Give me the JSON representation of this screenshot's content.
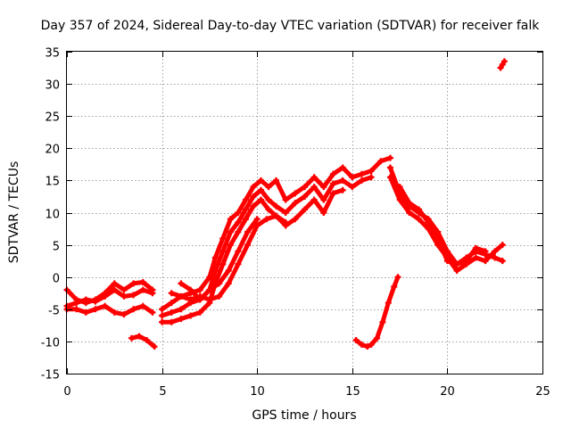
{
  "chart_data": {
    "type": "scatter",
    "title": "Day 357 of 2024, Sidereal Day-to-day VTEC variation (SDTVAR) for receiver falk",
    "xlabel": "GPS time / hours",
    "ylabel": "SDTVAR / TECUs",
    "xlim": [
      0,
      25
    ],
    "ylim": [
      -15,
      35
    ],
    "xticks": [
      0,
      5,
      10,
      15,
      20,
      25
    ],
    "yticks": [
      -15,
      -10,
      -5,
      0,
      5,
      10,
      15,
      20,
      25,
      30,
      35
    ],
    "grid": true,
    "marker_color": "#ff0000",
    "series": [
      {
        "name": "trace-1",
        "x": [
          0.0,
          0.5,
          1.0,
          1.5,
          2.0,
          2.5,
          3.0,
          3.5,
          4.0,
          4.5
        ],
        "y": [
          -4.5,
          -4.0,
          -3.5,
          -3.8,
          -3.0,
          -2.0,
          -3.0,
          -2.8,
          -2.0,
          -2.5
        ]
      },
      {
        "name": "trace-2",
        "x": [
          0.0,
          0.5,
          1.0,
          1.5,
          2.0,
          2.5,
          3.0,
          3.5,
          4.0,
          4.5
        ],
        "y": [
          -2.0,
          -3.5,
          -4.0,
          -3.5,
          -2.5,
          -1.0,
          -2.0,
          -1.0,
          -0.8,
          -2.0
        ]
      },
      {
        "name": "trace-3",
        "x": [
          0.0,
          0.5,
          1.0,
          1.5,
          2.0,
          2.5,
          3.0,
          3.5,
          4.0,
          4.5
        ],
        "y": [
          -5.0,
          -5.0,
          -5.5,
          -5.0,
          -4.5,
          -5.5,
          -5.8,
          -5.0,
          -4.5,
          -5.5
        ]
      },
      {
        "name": "trace-4",
        "x": [
          3.4,
          3.8,
          4.2,
          4.6
        ],
        "y": [
          -9.5,
          -9.2,
          -9.8,
          -10.8
        ]
      },
      {
        "name": "trace-5",
        "x": [
          5.0,
          5.5,
          6.0,
          6.5,
          7.0,
          7.5,
          7.8,
          8.2,
          8.6,
          9.0,
          9.4,
          9.8,
          10.2,
          10.6,
          11.0,
          11.5,
          12.0,
          12.5,
          13.0,
          13.5,
          14.0,
          14.5,
          15.0,
          15.5,
          16.0,
          16.5,
          17.0
        ],
        "y": [
          -5.0,
          -4.0,
          -3.0,
          -2.5,
          -2.0,
          0.0,
          3.0,
          6.0,
          9.0,
          10.0,
          12.0,
          14.0,
          15.0,
          14.0,
          15.0,
          12.0,
          13.0,
          14.0,
          15.5,
          14.0,
          16.0,
          17.0,
          15.5,
          16.0,
          16.5,
          18.0,
          18.5
        ]
      },
      {
        "name": "trace-6",
        "x": [
          5.0,
          5.5,
          6.0,
          6.5,
          7.0,
          7.5,
          7.8,
          8.2,
          8.6,
          9.0,
          9.4,
          9.8,
          10.2,
          10.6,
          11.0,
          11.5,
          12.0,
          12.5,
          13.0,
          13.5,
          14.0,
          14.5,
          15.0,
          15.5,
          16.0
        ],
        "y": [
          -6.0,
          -5.5,
          -5.0,
          -4.0,
          -3.5,
          -2.0,
          1.0,
          4.0,
          7.0,
          8.5,
          10.5,
          12.5,
          13.5,
          12.0,
          11.0,
          10.0,
          11.5,
          12.5,
          14.0,
          12.0,
          14.5,
          15.0,
          14.0,
          15.0,
          15.5
        ]
      },
      {
        "name": "trace-7",
        "x": [
          5.0,
          5.5,
          6.0,
          6.5,
          7.0,
          7.5,
          7.8,
          8.2,
          8.6,
          9.0,
          9.4,
          9.8,
          10.2,
          10.6,
          11.0,
          11.5,
          12.0,
          12.5,
          13.0,
          13.5,
          14.0,
          14.5
        ],
        "y": [
          -7.0,
          -7.0,
          -6.5,
          -6.0,
          -5.5,
          -4.0,
          -1.0,
          2.0,
          5.0,
          7.0,
          9.0,
          11.0,
          12.0,
          10.5,
          9.5,
          8.0,
          9.0,
          10.5,
          12.0,
          10.0,
          13.0,
          13.5
        ]
      },
      {
        "name": "trace-8",
        "x": [
          5.5,
          6.0,
          6.5,
          7.0,
          7.5,
          8.0,
          8.5,
          9.0,
          9.5,
          10.0,
          10.5,
          11.0,
          11.5
        ],
        "y": [
          -2.5,
          -3.0,
          -3.5,
          -3.0,
          -3.5,
          -3.0,
          -1.0,
          2.0,
          5.0,
          8.0,
          9.0,
          9.5,
          8.5
        ]
      },
      {
        "name": "trace-9",
        "x": [
          6.0,
          6.5,
          7.0,
          7.5,
          8.0,
          8.5,
          9.0,
          9.5,
          10.0
        ],
        "y": [
          -1.0,
          -2.0,
          -3.5,
          -2.0,
          -1.0,
          1.0,
          4.0,
          7.0,
          9.0
        ]
      },
      {
        "name": "trace-10",
        "x": [
          17.0,
          17.5,
          18.0,
          18.5,
          19.0,
          19.5,
          20.0,
          20.5,
          21.0,
          21.5,
          22.0,
          22.5,
          22.9
        ],
        "y": [
          17.0,
          13.0,
          11.0,
          10.0,
          9.0,
          7.0,
          4.0,
          2.0,
          3.0,
          4.0,
          3.5,
          3.0,
          2.5
        ]
      },
      {
        "name": "trace-11",
        "x": [
          17.0,
          17.5,
          18.0,
          18.5,
          19.0,
          19.5,
          20.0,
          20.5,
          21.0,
          21.5,
          22.0,
          22.5,
          22.9
        ],
        "y": [
          15.5,
          12.0,
          10.0,
          9.0,
          7.5,
          5.0,
          3.0,
          1.0,
          2.0,
          3.0,
          2.5,
          4.0,
          5.0
        ]
      },
      {
        "name": "trace-12",
        "x": [
          17.5,
          18.0,
          18.5,
          19.0,
          19.5,
          20.0,
          20.5,
          21.0,
          21.5,
          22.0
        ],
        "y": [
          14.0,
          11.5,
          10.5,
          8.5,
          6.0,
          2.5,
          2.0,
          2.5,
          4.5,
          4.0
        ]
      },
      {
        "name": "trace-13",
        "x": [
          15.2,
          15.5,
          15.8,
          16.0,
          16.3,
          16.6,
          16.9,
          17.2,
          17.4
        ],
        "y": [
          -9.8,
          -10.5,
          -10.8,
          -10.5,
          -9.5,
          -7.0,
          -4.0,
          -1.5,
          0.0
        ]
      },
      {
        "name": "trace-14",
        "x": [
          22.8,
          22.9,
          23.0
        ],
        "y": [
          32.5,
          33.0,
          33.5
        ]
      }
    ]
  }
}
